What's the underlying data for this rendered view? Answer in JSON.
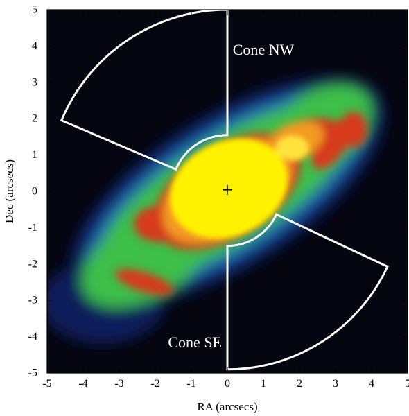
{
  "figure": {
    "xlabel": "RA (arcsecs)",
    "ylabel": "Dec (arcsecs)",
    "x_range": [
      -5,
      5
    ],
    "y_range": [
      -5,
      5
    ],
    "x_ticks": [
      "-5",
      "-4",
      "-3",
      "-2",
      "-1",
      "0",
      "1",
      "2",
      "3",
      "4",
      "5"
    ],
    "y_ticks": [
      "-5",
      "-4",
      "-3",
      "-2",
      "-1",
      "0",
      "1",
      "2",
      "3",
      "4",
      "5"
    ],
    "colormap": [
      "#05060f",
      "#0a1a5a",
      "#1b5fb0",
      "#2fa88a",
      "#3cbf4a",
      "#d63a1e",
      "#f39a20",
      "#fff200"
    ],
    "center_marker": "+",
    "regions": [
      {
        "label": "Cone NW",
        "center": [
          0,
          0
        ],
        "inner_radius": 1.55,
        "outer_radius": 5.0,
        "pa_start": 0,
        "pa_end": 67
      },
      {
        "label": "Cone SE",
        "center": [
          0,
          0
        ],
        "inner_radius": 1.5,
        "outer_radius": 4.9,
        "pa_start": 180,
        "pa_end": 245
      }
    ]
  }
}
